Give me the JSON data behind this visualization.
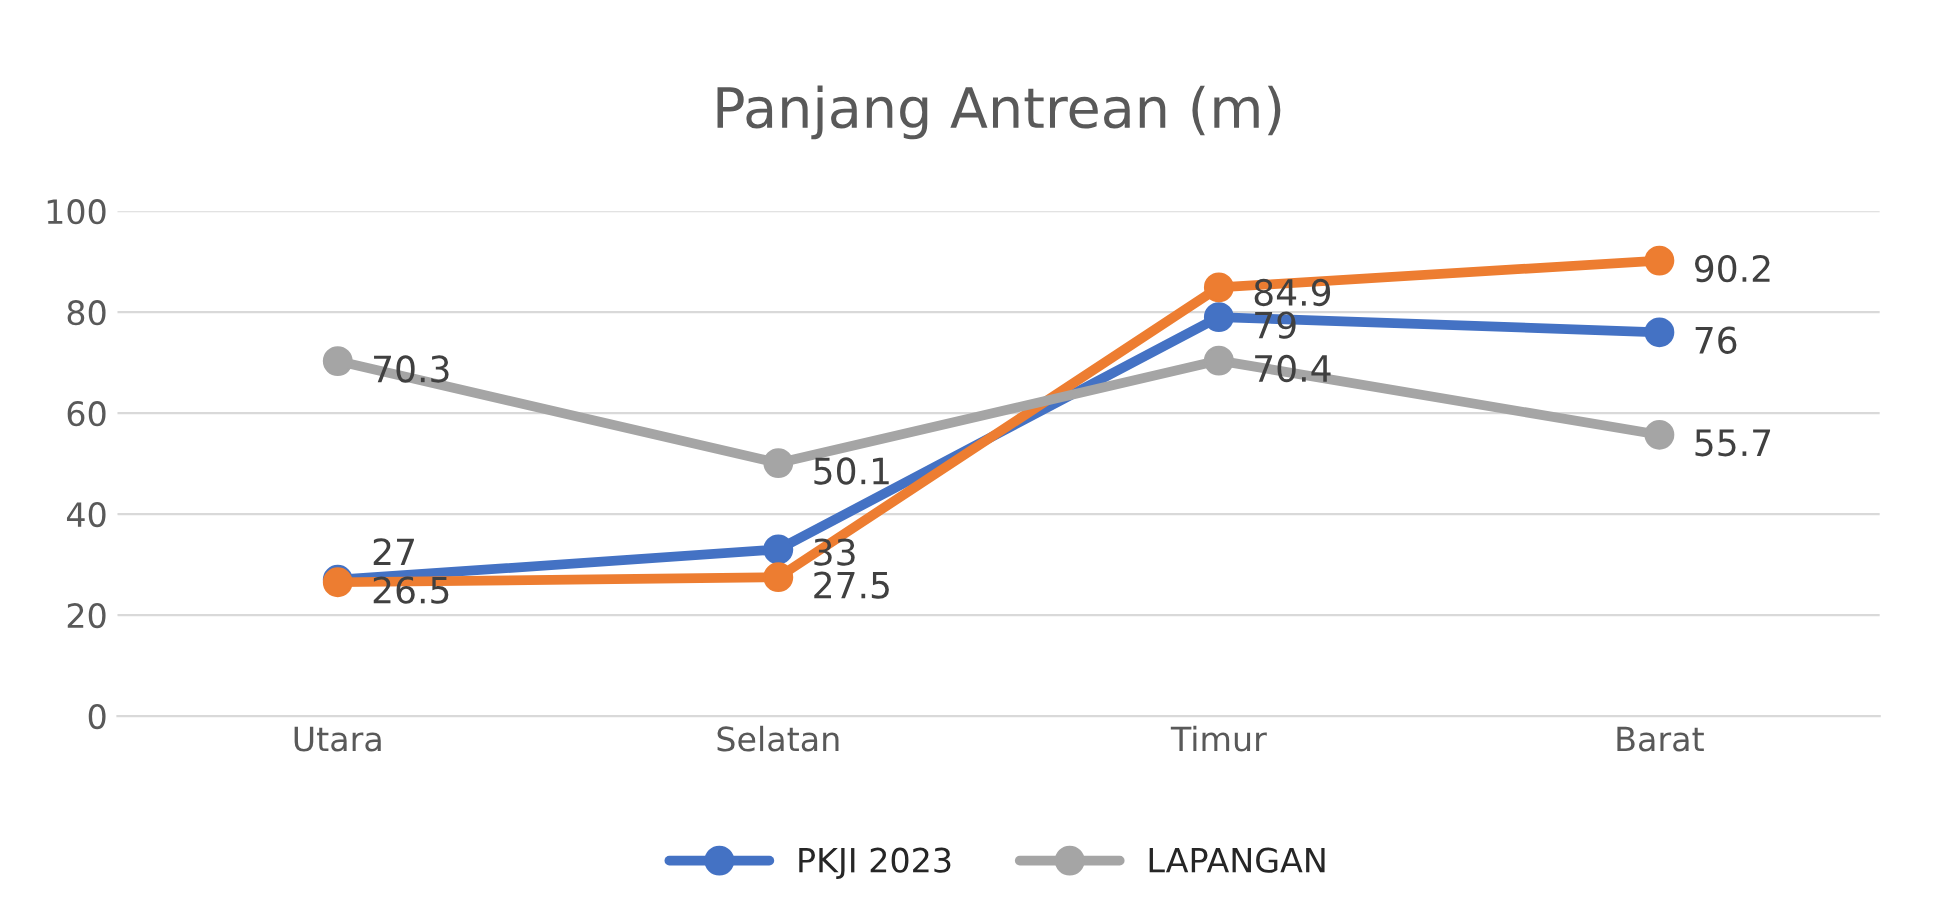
{
  "chart_data": {
    "type": "line",
    "title": "Panjang Antrean (m)",
    "categories": [
      "Utara",
      "Selatan",
      "Timur",
      "Barat"
    ],
    "series": [
      {
        "name": "PKJI 2023",
        "color": "#4472c4",
        "values": [
          27,
          33,
          79,
          76
        ]
      },
      {
        "color": "#ed7d31",
        "values": [
          26.5,
          27.5,
          84.9,
          90.2
        ]
      },
      {
        "name": "LAPANGAN",
        "color": "#a5a5a5",
        "values": [
          70.3,
          50.1,
          70.4,
          55.7
        ]
      }
    ],
    "ylim": [
      0,
      100
    ],
    "yticks": [
      0,
      20,
      40,
      60,
      80,
      100
    ],
    "grid": "y",
    "legend": "bottom",
    "marker": "circle",
    "line_style": "solid",
    "data_labels": true
  }
}
